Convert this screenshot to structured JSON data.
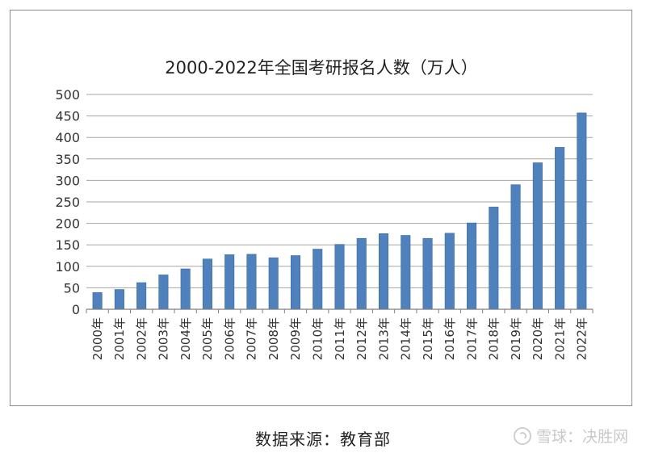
{
  "chart_data": {
    "type": "bar",
    "title": "2000-2022年全国考研报名人数（万人）",
    "xlabel": "",
    "ylabel": "",
    "ylim": [
      0,
      500
    ],
    "yticks": [
      0,
      50,
      100,
      150,
      200,
      250,
      300,
      350,
      400,
      450,
      500
    ],
    "categories": [
      "2000年",
      "2001年",
      "2002年",
      "2003年",
      "2004年",
      "2005年",
      "2006年",
      "2007年",
      "2008年",
      "2009年",
      "2010年",
      "2011年",
      "2012年",
      "2013年",
      "2014年",
      "2015年",
      "2016年",
      "2017年",
      "2018年",
      "2019年",
      "2020年",
      "2021年",
      "2022年"
    ],
    "values": [
      39,
      46,
      62,
      80,
      94,
      117,
      127,
      128,
      120,
      125,
      140,
      151,
      165,
      176,
      172,
      165,
      177,
      201,
      238,
      290,
      341,
      377,
      457
    ],
    "grid": true,
    "legend": "none",
    "bar_color": "#4f81bd"
  },
  "footer": {
    "source": "数据来源：教育部",
    "watermark": "雪球：决胜网"
  }
}
